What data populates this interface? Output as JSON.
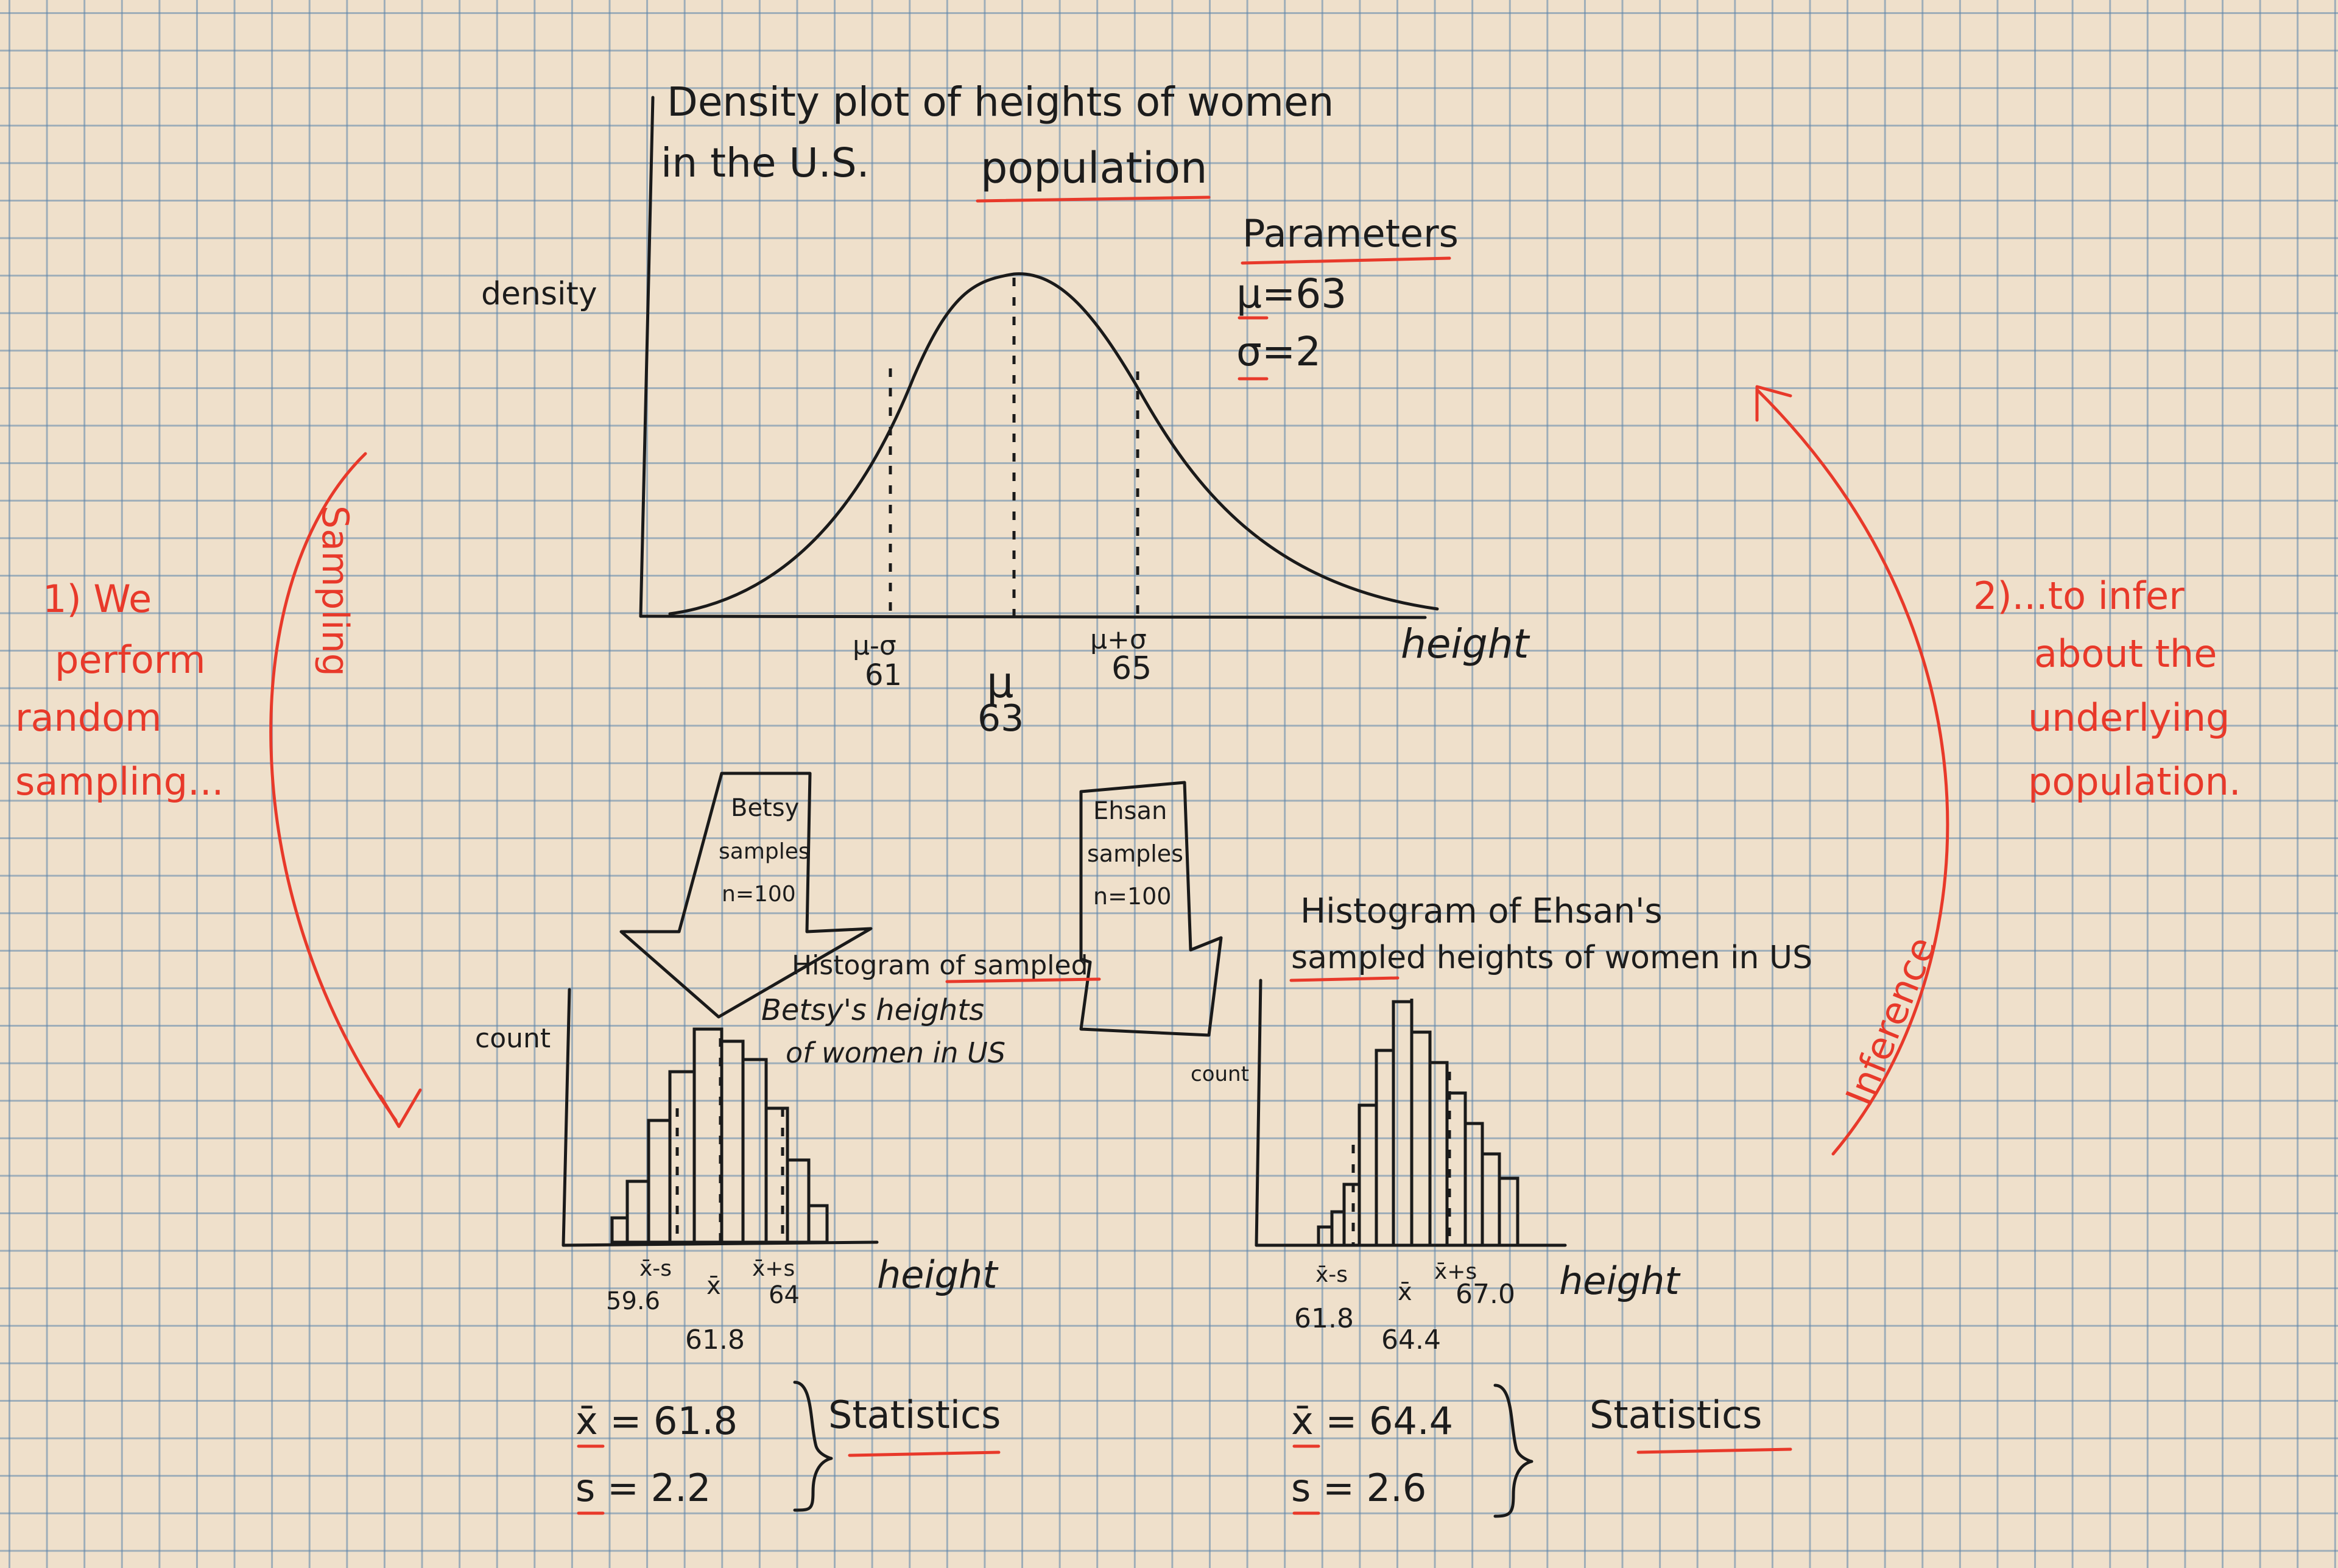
{
  "population": {
    "title_line1": "Density plot of heights of women",
    "title_line2_pre": "in the U.S.",
    "title_line2_word": "population",
    "ylabel": "density",
    "xlabel": "height",
    "params_heading": "Parameters",
    "param_mu": "μ=63",
    "param_sigma": "σ=2",
    "tick_left_sym": "μ-σ",
    "tick_left_val": "61",
    "tick_mid_sym": "μ",
    "tick_mid_val": "63",
    "tick_right_sym": "μ+σ",
    "tick_right_val": "65"
  },
  "left_notes": {
    "line1": "1) We",
    "line2": "perform",
    "line3": "random",
    "line4": "sampling...",
    "arc_label": "Sampling"
  },
  "right_notes": {
    "line1": "2)...to infer",
    "line2": "about the",
    "line3": "underlying",
    "line4": "population.",
    "arc_label": "Inference"
  },
  "betsy": {
    "arrow_line1": "Betsy",
    "arrow_line2": "samples",
    "arrow_line3": "n=100",
    "title_line1": "Histogram of sampled",
    "title_line2": "Betsy's heights",
    "title_line3": "of women in US",
    "ylabel": "count",
    "xlabel": "height",
    "tick_left_sym": "x̄-s",
    "tick_left_val": "59.6",
    "tick_mid_sym": "x̄",
    "tick_mid_val": "61.8",
    "tick_right_sym": "x̄+s",
    "tick_right_val": "64",
    "stat_mean": "x̄ = 61.8",
    "stat_sd": "s = 2.2",
    "stats_label": "Statistics"
  },
  "ehsan": {
    "arrow_line1": "Ehsan",
    "arrow_line2": "samples",
    "arrow_line3": "n=100",
    "title_line1": "Histogram of Ehsan's",
    "title_line2": "sampled heights of women in US",
    "ylabel": "count",
    "xlabel": "height",
    "tick_left_sym": "x̄-s",
    "tick_left_val": "61.8",
    "tick_mid_sym": "x̄",
    "tick_mid_val": "64.4",
    "tick_right_sym": "x̄+s",
    "tick_right_val": "67.0",
    "stat_mean": "x̄ = 64.4",
    "stat_sd": "s = 2.6",
    "stats_label": "Statistics"
  },
  "colors": {
    "ink": "#1a1a1a",
    "red": "#e8392a",
    "paper": "#efe0cb",
    "grid": "#5c84aa"
  }
}
